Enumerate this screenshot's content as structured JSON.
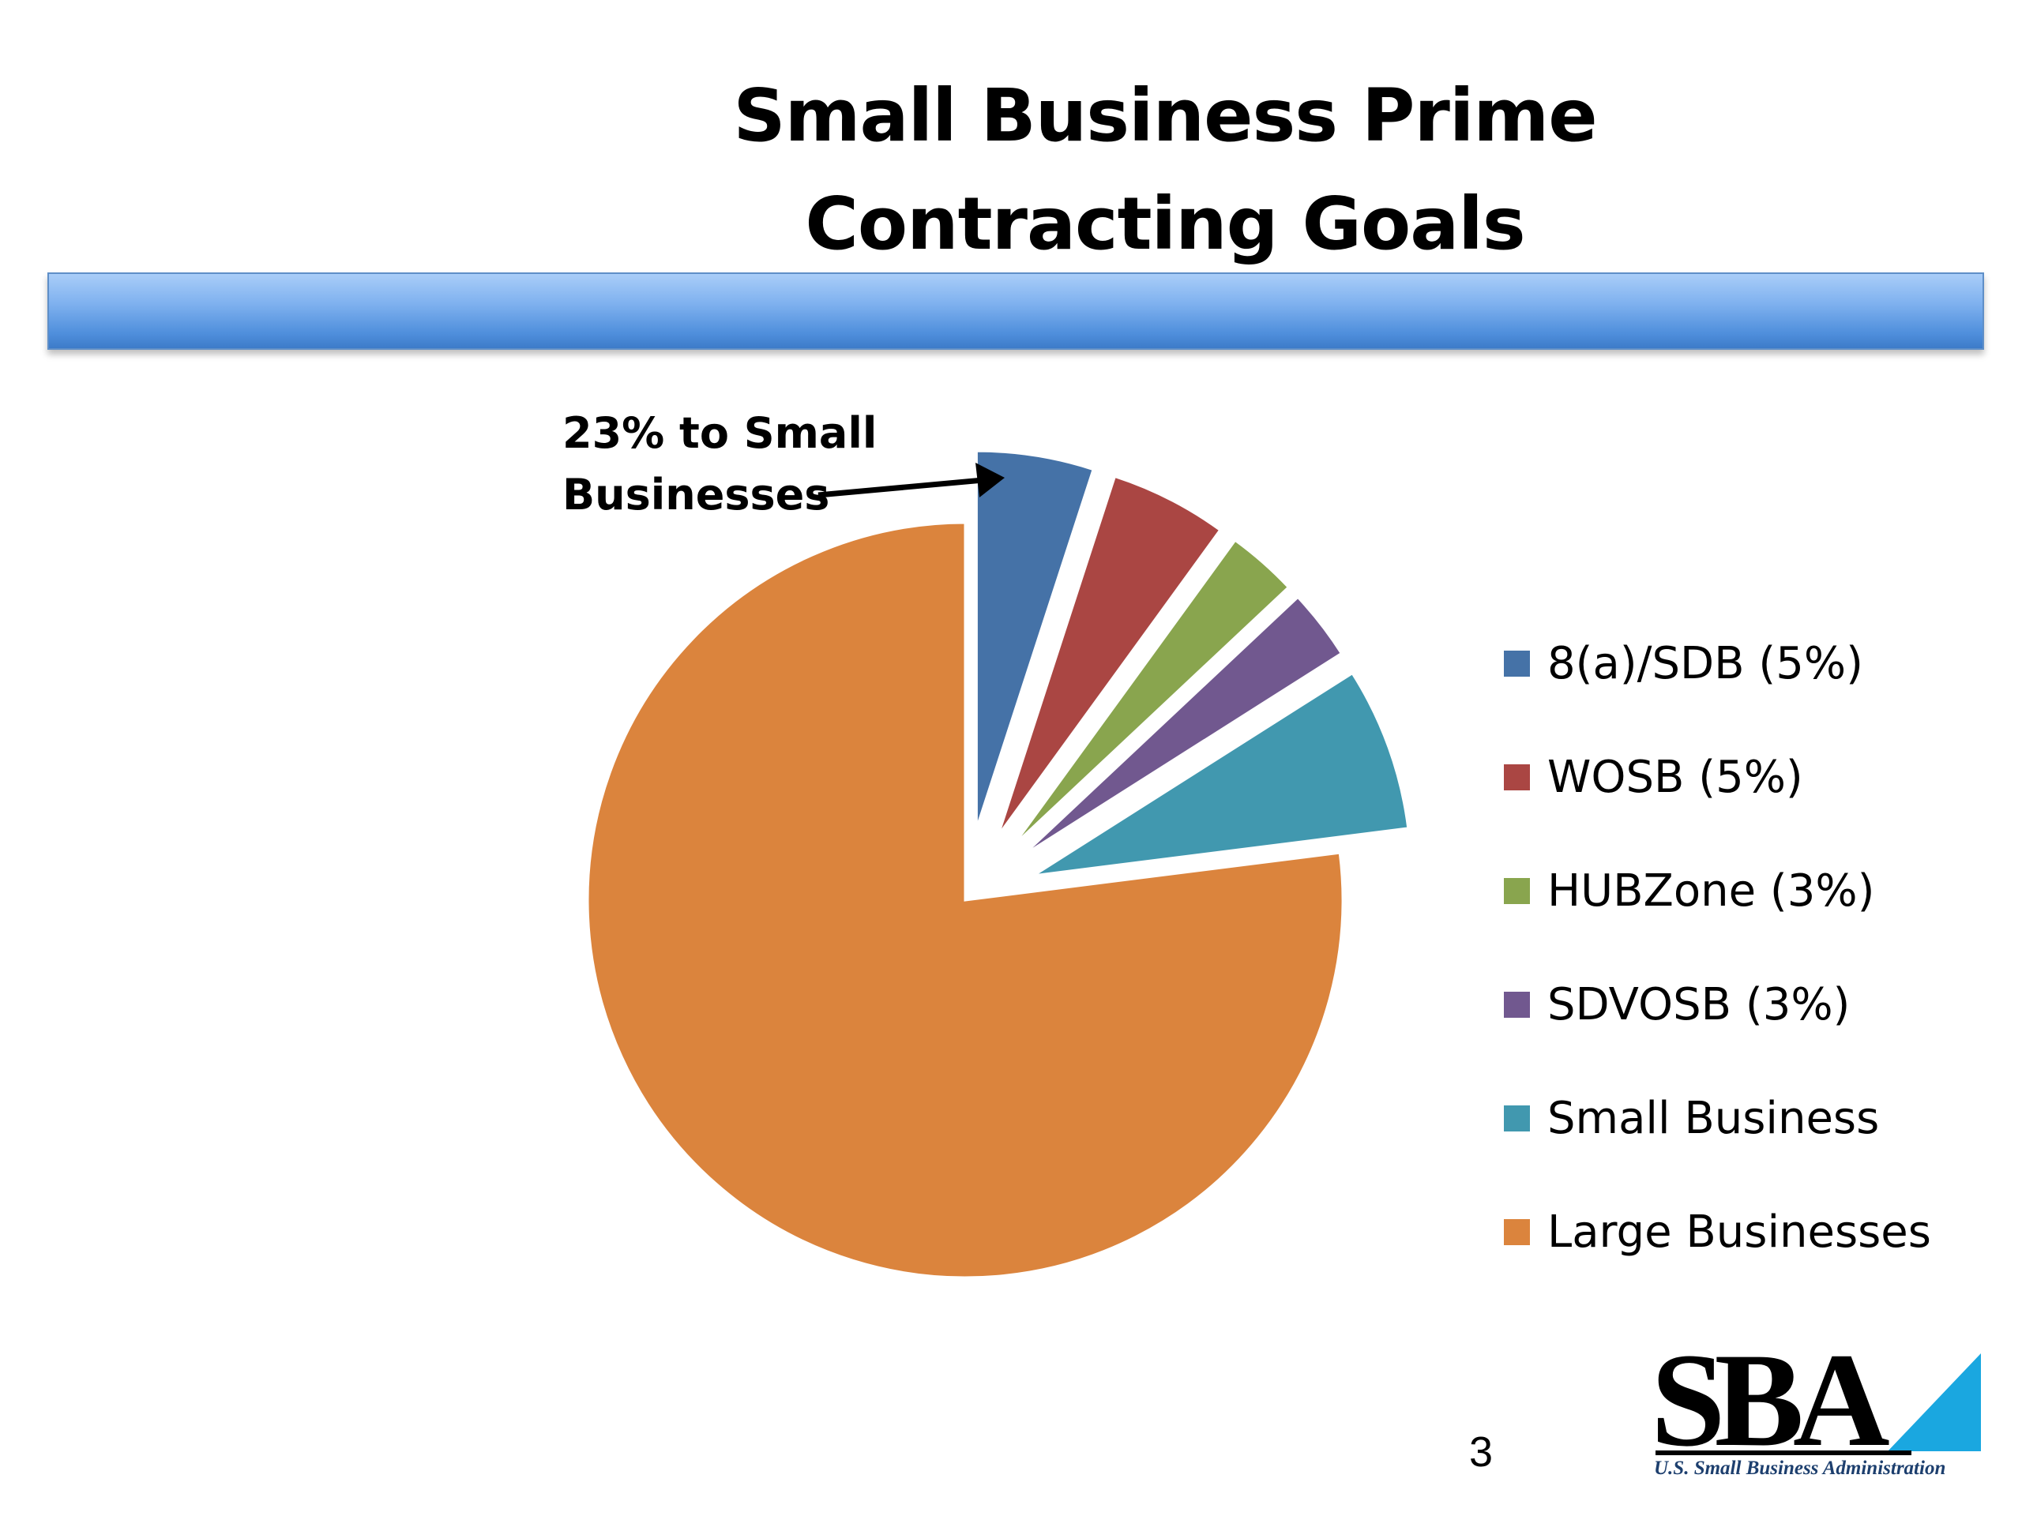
{
  "slide": {
    "title": "Small Business Prime Contracting Goals",
    "page_number": "3"
  },
  "annotation": {
    "text": "23% to Small\nBusinesses"
  },
  "logo": {
    "letters": "SBA",
    "caption": "U.S. Small Business Administration"
  },
  "colors": {
    "accent_bar": "#5b9be6"
  },
  "chart_data": {
    "type": "pie",
    "title": "",
    "legend_position": "right",
    "slices": [
      {
        "label": "8(a)/SDB (5%)",
        "value": 5,
        "color": "#4572a7",
        "exploded": true
      },
      {
        "label": "WOSB (5%)",
        "value": 5,
        "color": "#aa4643",
        "exploded": true
      },
      {
        "label": "HUBZone (3%)",
        "value": 3,
        "color": "#89a54e",
        "exploded": true
      },
      {
        "label": "SDVOSB (3%)",
        "value": 3,
        "color": "#71588f",
        "exploded": true
      },
      {
        "label": "Small Business",
        "value": 7,
        "color": "#4198af",
        "exploded": true
      },
      {
        "label": "Large Businesses",
        "value": 77,
        "color": "#db843d",
        "exploded": false
      }
    ]
  }
}
